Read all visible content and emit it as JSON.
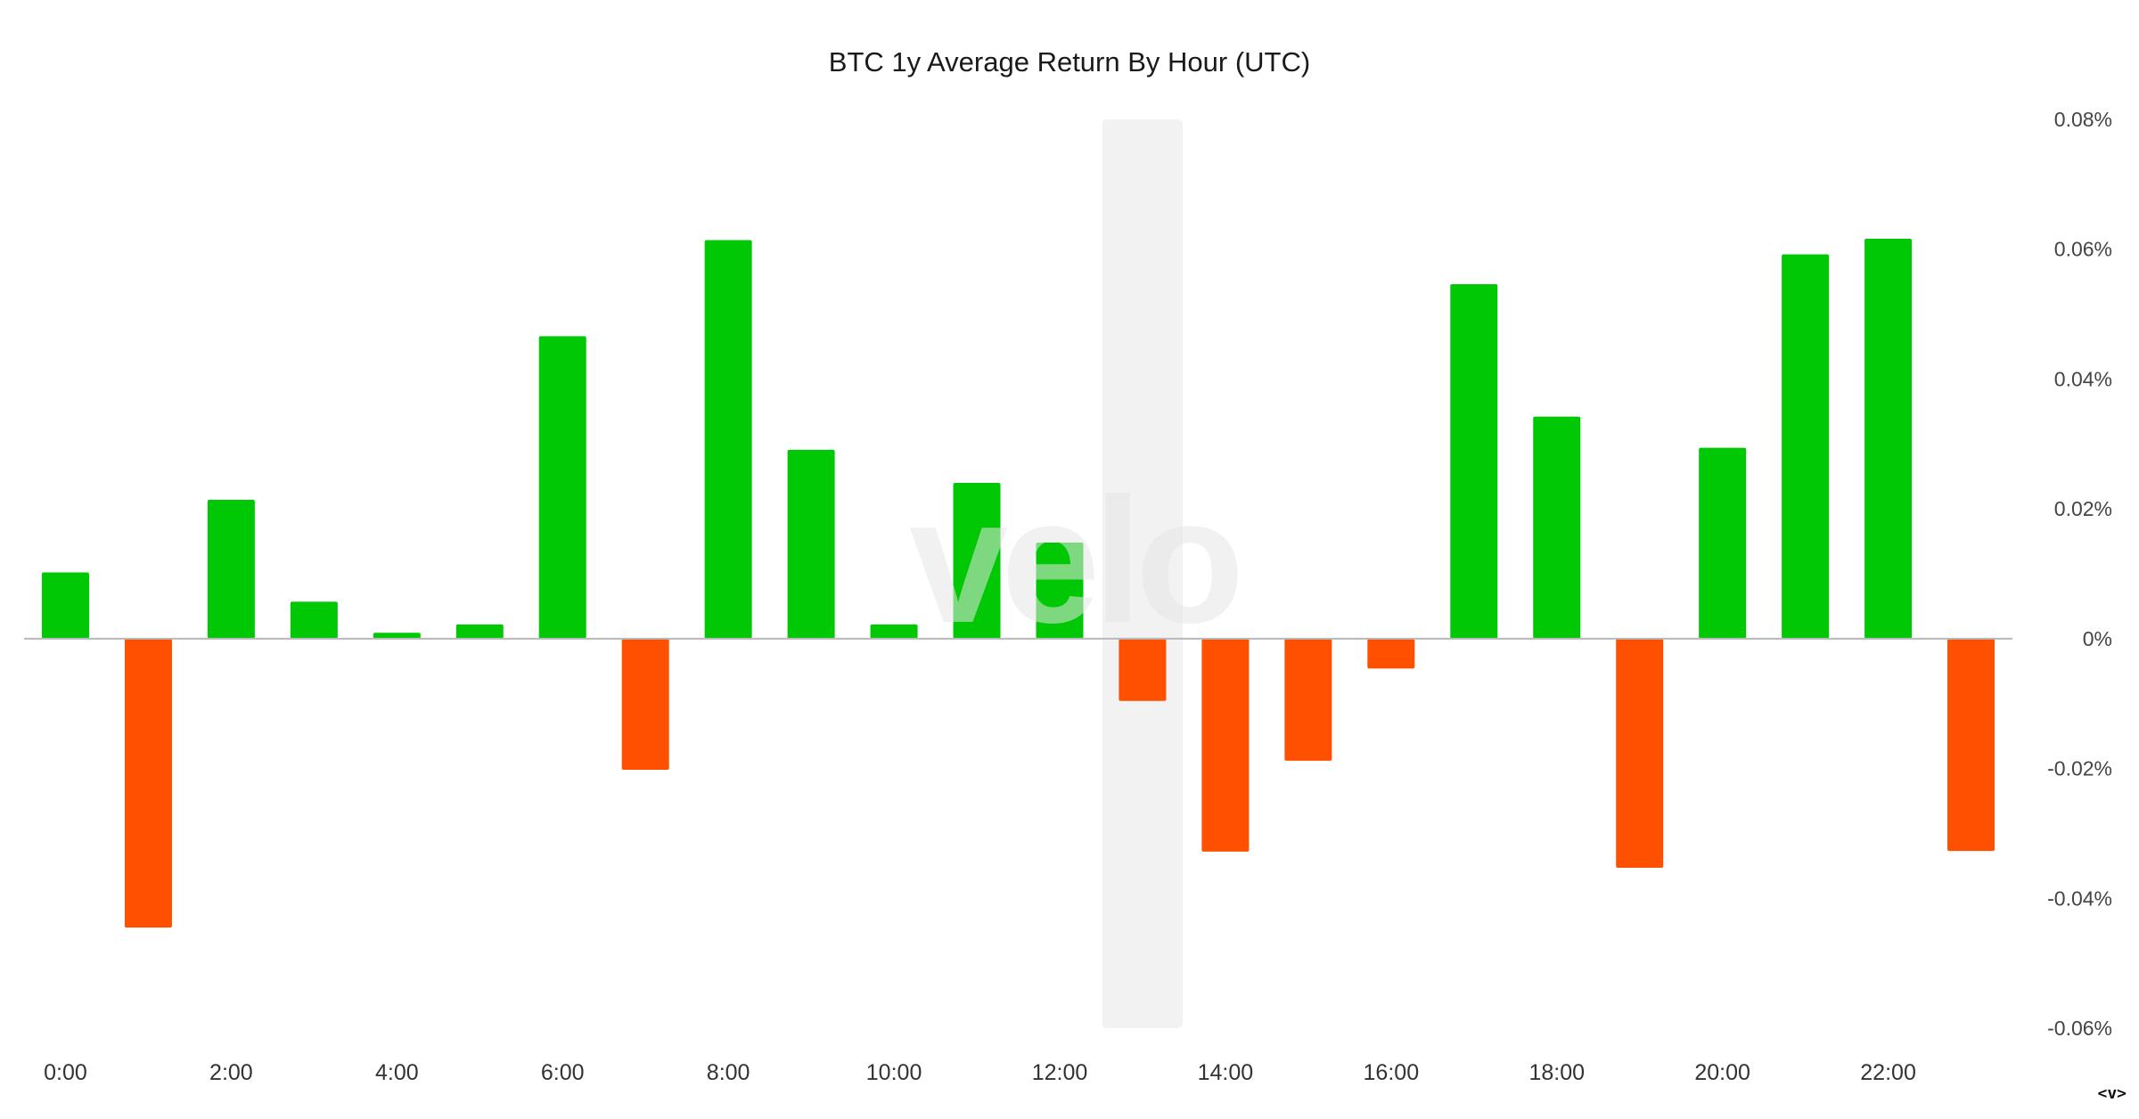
{
  "chart_data": {
    "type": "bar",
    "title": "BTC 1y Average Return By Hour (UTC)",
    "categories": [
      "0:00",
      "1:00",
      "2:00",
      "3:00",
      "4:00",
      "5:00",
      "6:00",
      "7:00",
      "8:00",
      "9:00",
      "10:00",
      "11:00",
      "12:00",
      "13:00",
      "14:00",
      "15:00",
      "16:00",
      "17:00",
      "18:00",
      "19:00",
      "20:00",
      "21:00",
      "22:00",
      "23:00"
    ],
    "x_tick_labels": [
      "0:00",
      "2:00",
      "4:00",
      "6:00",
      "8:00",
      "10:00",
      "12:00",
      "14:00",
      "16:00",
      "18:00",
      "20:00",
      "22:00"
    ],
    "values": [
      0.0102,
      -0.0445,
      0.0214,
      0.0057,
      0.0009,
      0.0022,
      0.0466,
      -0.0202,
      0.0614,
      0.0291,
      0.0022,
      0.024,
      0.0148,
      -0.0096,
      -0.0328,
      -0.0188,
      -0.0046,
      0.0546,
      0.0342,
      -0.0353,
      0.0294,
      0.0592,
      0.0616,
      -0.0327
    ],
    "y_ticks": [
      "0.08%",
      "0.06%",
      "0.04%",
      "0.02%",
      "0%",
      "-0.02%",
      "-0.04%",
      "-0.06%"
    ],
    "y_tick_values": [
      0.08,
      0.06,
      0.04,
      0.02,
      0,
      -0.02,
      -0.04,
      -0.06
    ],
    "ylim": [
      -0.06,
      0.08
    ],
    "y_axis_side": "right",
    "highlighted_category": "13:00",
    "grid": false,
    "colors": {
      "positive": "#00c805",
      "negative": "#ff5000",
      "highlight": "#f2f2f2",
      "zero_line": "#b8b8b8"
    }
  },
  "watermark": "velo",
  "corner_mark": "<v>"
}
